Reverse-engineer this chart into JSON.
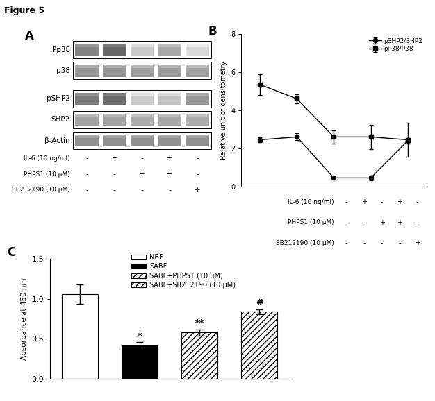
{
  "figure_title": "Figure 5",
  "panel_A": {
    "labels": [
      "Pp38",
      "p38",
      "pSHP2",
      "SHP2",
      "β-Actin"
    ],
    "row_labels": [
      "IL-6 (10 ng/ml)",
      "PHPS1 (10 μM)",
      "SB212190 (10 μM)"
    ],
    "conditions": [
      [
        "-",
        "+",
        "-",
        "+",
        "-"
      ],
      [
        "-",
        "-",
        "+",
        "+",
        "-"
      ],
      [
        "-",
        "-",
        "-",
        "-",
        "+"
      ]
    ],
    "n_lanes": 5,
    "band_intensities": {
      "Pp38": [
        0.65,
        0.8,
        0.28,
        0.45,
        0.2
      ],
      "p38": [
        0.55,
        0.55,
        0.5,
        0.52,
        0.48
      ],
      "pSHP2": [
        0.7,
        0.78,
        0.28,
        0.32,
        0.55
      ],
      "SHP2": [
        0.48,
        0.48,
        0.44,
        0.46,
        0.44
      ],
      "β-Actin": [
        0.58,
        0.58,
        0.58,
        0.58,
        0.58
      ]
    }
  },
  "panel_B": {
    "x_positions": [
      1,
      2,
      3,
      4,
      5
    ],
    "pSHP2_SHP2_y": [
      2.45,
      2.6,
      0.45,
      0.45,
      2.4
    ],
    "pSHP2_SHP2_err": [
      0.12,
      0.18,
      0.1,
      0.12,
      0.15
    ],
    "pP38_P38_y": [
      5.35,
      4.6,
      2.6,
      2.6,
      2.45
    ],
    "pP38_P38_err": [
      0.55,
      0.25,
      0.35,
      0.65,
      0.9
    ],
    "ylabel": "Relative unit of densitometry",
    "ylim": [
      0,
      8
    ],
    "yticks": [
      0,
      2,
      4,
      6,
      8
    ],
    "row_labels": [
      "IL-6 (10 ng/ml)",
      "PHPS1 (10 μM)",
      "SB212190 (10 μM)"
    ],
    "conditions": [
      [
        "-",
        "+",
        "-",
        "+",
        "-"
      ],
      [
        "-",
        "-",
        "+",
        "+",
        "-"
      ],
      [
        "-",
        "-",
        "-",
        "-",
        "+"
      ]
    ],
    "legend_pSHP2": "pSHP2/SHP2",
    "legend_pP38": "pP38/P38"
  },
  "panel_C": {
    "values": [
      1.06,
      0.42,
      0.58,
      0.84
    ],
    "errors": [
      0.12,
      0.04,
      0.04,
      0.03
    ],
    "bar_colors": [
      "white",
      "black",
      "white",
      "white"
    ],
    "ylabel": "Absorbance at 450 nm",
    "ylim": [
      0,
      1.5
    ],
    "yticks": [
      0.0,
      0.5,
      1.0,
      1.5
    ],
    "annotations": [
      "",
      "*",
      "**",
      "#"
    ],
    "hatch_patterns": [
      "",
      "",
      "////",
      "////"
    ],
    "hatch_linewidths": [
      0,
      0,
      0.5,
      0.5
    ],
    "legend_labels": [
      "NBF",
      "SABF",
      "SABF+PHPS1 (10 μM)",
      "SABF+SB212190 (10 μM)"
    ],
    "legend_hatches": [
      "",
      "",
      "////",
      "////"
    ],
    "legend_facecolors": [
      "white",
      "black",
      "white",
      "white"
    ]
  }
}
